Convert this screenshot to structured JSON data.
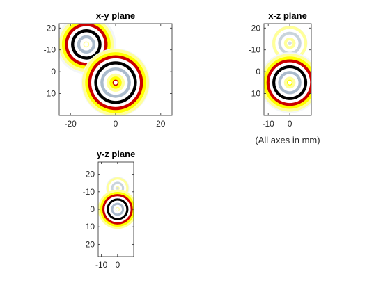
{
  "figure": {
    "note": "(All axes in mm)"
  },
  "chart_data": [
    {
      "type": "heatmap",
      "title": "x-y plane",
      "xlabel": "",
      "ylabel": "",
      "xlim": [
        -25,
        25
      ],
      "ylim": [
        -22,
        20
      ],
      "y_reversed": true,
      "xticks": [
        -20,
        0,
        20
      ],
      "yticks": [
        -20,
        -10,
        0,
        10
      ],
      "sources": [
        {
          "cx": -13,
          "cy": -12.5,
          "r": 12
        },
        {
          "cx": 0,
          "cy": 5,
          "r": 14
        }
      ]
    },
    {
      "type": "heatmap",
      "title": "x-z plane",
      "xlabel": "",
      "ylabel": "",
      "xlim": [
        -12,
        10
      ],
      "ylim": [
        -22,
        20
      ],
      "y_reversed": true,
      "xticks": [
        -10,
        0
      ],
      "yticks": [
        -20,
        -10,
        0,
        10
      ],
      "sources": [
        {
          "cx": 0,
          "cy": -13,
          "r": 7,
          "faint": true
        },
        {
          "cx": 0,
          "cy": 5,
          "r": 13
        }
      ]
    },
    {
      "type": "heatmap",
      "title": "y-z plane",
      "xlabel": "",
      "ylabel": "",
      "xlim": [
        -12,
        10
      ],
      "ylim": [
        -27,
        27
      ],
      "y_reversed": true,
      "xticks": [
        -10,
        0
      ],
      "yticks": [
        -20,
        -10,
        0,
        10,
        20
      ],
      "sources": [
        {
          "cx": 0,
          "cy": -12,
          "r": 6,
          "faint": true
        },
        {
          "cx": 0,
          "cy": 0,
          "r": 11
        }
      ]
    }
  ],
  "colors": {
    "ring_cycle": [
      "#ffff99",
      "#ffff00",
      "#cc0000",
      "#ffffff",
      "#000000",
      "#ffffff",
      "#aabbcc",
      "#ffffff"
    ],
    "frame": "#262626"
  }
}
